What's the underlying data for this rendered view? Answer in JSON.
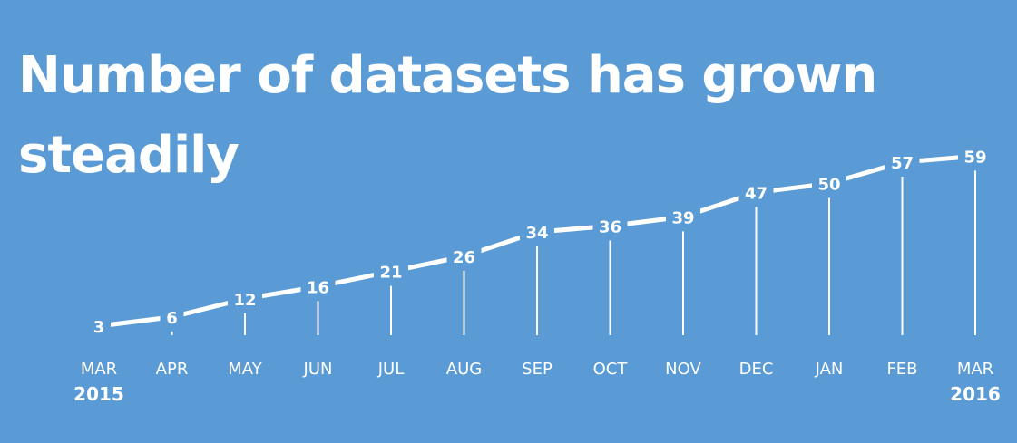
{
  "chart_data": {
    "type": "line",
    "title": "Number of datasets has grown steadily",
    "categories": [
      "MAR",
      "APR",
      "MAY",
      "JUN",
      "JUL",
      "AUG",
      "SEP",
      "OCT",
      "NOV",
      "DEC",
      "JAN",
      "FEB",
      "MAR"
    ],
    "year_labels": [
      {
        "index": 0,
        "text": "2015"
      },
      {
        "index": 12,
        "text": "2016"
      }
    ],
    "values": [
      3,
      6,
      12,
      16,
      21,
      26,
      34,
      36,
      39,
      47,
      50,
      57,
      59
    ],
    "ylim": [
      0,
      59
    ],
    "grid": false,
    "colors": {
      "background": "#5b9bd5",
      "foreground": "#ffffff"
    }
  }
}
